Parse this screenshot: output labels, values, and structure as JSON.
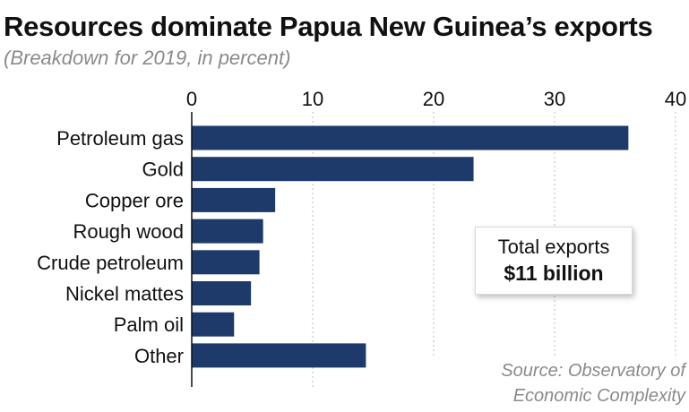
{
  "header": {
    "title": "Resources dominate Papua New Guinea’s exports",
    "subtitle": "(Breakdown for 2019, in percent)"
  },
  "callout": {
    "line1": "Total exports",
    "line2": "$11 billion"
  },
  "source": {
    "line1": "Source: Observatory of",
    "line2": "Economic Complexity"
  },
  "colors": {
    "bar": "#1e3a6b",
    "grid": "#c8c8c8",
    "axis": "#111111"
  },
  "chart_data": {
    "type": "bar",
    "orientation": "horizontal",
    "title": "Resources dominate Papua New Guinea’s exports",
    "subtitle": "(Breakdown for 2019, in percent)",
    "categories": [
      "Petroleum gas",
      "Gold",
      "Copper ore",
      "Rough wood",
      "Crude petroleum",
      "Nickel mattes",
      "Palm oil",
      "Other"
    ],
    "values": [
      36.1,
      23.3,
      6.9,
      5.9,
      5.6,
      4.9,
      3.5,
      14.4
    ],
    "xlim": [
      0,
      40
    ],
    "xticks": [
      0,
      10,
      20,
      30,
      40
    ],
    "tick_labels": [
      "0",
      "10",
      "20",
      "30",
      "40"
    ],
    "xaxis_position": "top",
    "grid": "vertical dashed",
    "legend": "none"
  }
}
